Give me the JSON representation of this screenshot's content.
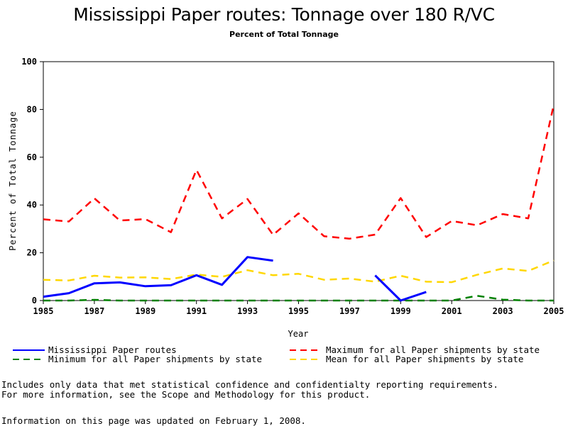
{
  "chart_data": {
    "type": "line",
    "title": "Mississippi Paper routes: Tonnage over 180 R/VC",
    "subtitle": "Percent of Total Tonnage",
    "xlabel": "Year",
    "ylabel": "Percent of Total Tonnage",
    "xlim": [
      1985,
      2005
    ],
    "ylim": [
      0,
      100
    ],
    "xticks": [
      "1985",
      "1987",
      "1989",
      "1991",
      "1993",
      "1995",
      "1997",
      "1999",
      "2001",
      "2003",
      "2005"
    ],
    "yticks": [
      "0",
      "20",
      "40",
      "60",
      "80",
      "100"
    ],
    "x": [
      1985,
      1986,
      1987,
      1988,
      1989,
      1990,
      1991,
      1992,
      1993,
      1994,
      1995,
      1996,
      1997,
      1998,
      1999,
      2000,
      2001,
      2002,
      2003,
      2004,
      2005
    ],
    "series": [
      {
        "name": "Mississippi Paper routes",
        "color": "#0000ff",
        "style": "solid",
        "values": [
          1.6,
          3.1,
          7.2,
          7.6,
          6.0,
          6.4,
          10.6,
          6.6,
          18.2,
          16.7,
          null,
          null,
          null,
          10.5,
          0.0,
          3.6,
          null,
          null,
          null,
          null,
          null
        ]
      },
      {
        "name": "Maximum for all Paper shipments by state",
        "color": "#ff0000",
        "style": "dashed",
        "values": [
          34.0,
          33.1,
          42.8,
          33.5,
          34.1,
          28.6,
          54.7,
          34.4,
          42.5,
          27.5,
          36.5,
          26.9,
          25.9,
          27.6,
          42.9,
          26.6,
          33.3,
          31.5,
          36.2,
          34.4,
          82.0
        ]
      },
      {
        "name": "Minimum for all Paper shipments by state",
        "color": "#008000",
        "style": "dashed",
        "values": [
          0.0,
          0.0,
          0.3,
          0.0,
          0.0,
          0.0,
          0.0,
          0.0,
          0.0,
          0.0,
          0.0,
          0.0,
          0.0,
          0.0,
          0.0,
          0.0,
          0.0,
          2.0,
          0.4,
          0.0,
          0.0
        ]
      },
      {
        "name": "Mean for all Paper shipments by state",
        "color": "#ffd700",
        "style": "dashed",
        "values": [
          8.7,
          8.4,
          10.4,
          9.6,
          9.7,
          9.0,
          10.9,
          9.9,
          12.7,
          10.6,
          11.2,
          8.7,
          9.2,
          7.9,
          10.4,
          7.9,
          7.7,
          10.8,
          13.4,
          12.4,
          16.8
        ]
      }
    ]
  },
  "notes": {
    "line1": "Includes only data that met statistical confidence and confidentialty reporting requirements.",
    "line2": "For more information, see the Scope and Methodology for this product.",
    "updated": "Information on this page was updated on February 1, 2008."
  }
}
